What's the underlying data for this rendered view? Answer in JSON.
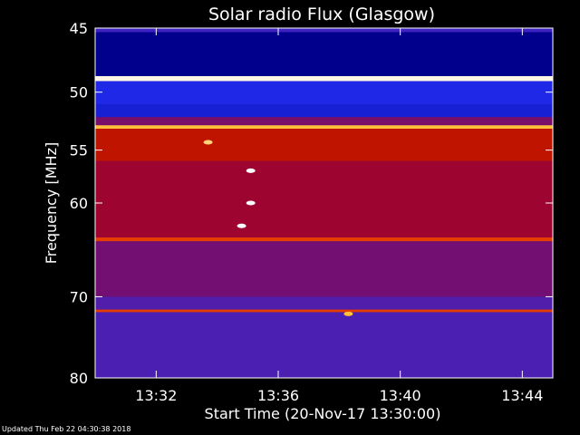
{
  "updated_text": "Updated Thu Feb 22 04:30:38 2018",
  "chart_data": {
    "type": "heatmap",
    "title": "Solar radio Flux (Glasgow)",
    "xlabel": "Start Time (20-Nov-17 13:30:00)",
    "ylabel": "Frequency [MHz]",
    "x_range_minutes": [
      0,
      15
    ],
    "x_tick_labels": [
      "13:32",
      "13:36",
      "13:40",
      "13:44"
    ],
    "x_tick_minutes": [
      2,
      6,
      10,
      14
    ],
    "y_scale": "log",
    "ylim": [
      45,
      80
    ],
    "y_ticks": [
      45,
      50,
      55,
      60,
      70,
      80
    ],
    "y_tick_labels": [
      "45",
      "50",
      "55",
      "60",
      "70",
      "80"
    ],
    "colormap": "black-blue-red-yellow-white",
    "bands": [
      {
        "f_from": 45.0,
        "f_to": 45.3,
        "level": 0.32
      },
      {
        "f_from": 45.3,
        "f_to": 48.7,
        "level": 0.12
      },
      {
        "f_from": 48.7,
        "f_to": 49.1,
        "level": 0.98
      },
      {
        "f_from": 49.1,
        "f_to": 51.0,
        "level": 0.22
      },
      {
        "f_from": 51.0,
        "f_to": 52.1,
        "level": 0.2
      },
      {
        "f_from": 52.1,
        "f_to": 52.8,
        "level": 0.45
      },
      {
        "f_from": 52.8,
        "f_to": 53.1,
        "level": 0.85
      },
      {
        "f_from": 53.1,
        "f_to": 56.0,
        "level": 0.6
      },
      {
        "f_from": 56.0,
        "f_to": 63.5,
        "level": 0.52
      },
      {
        "f_from": 63.5,
        "f_to": 63.9,
        "level": 0.7
      },
      {
        "f_from": 63.9,
        "f_to": 70.0,
        "level": 0.44
      },
      {
        "f_from": 70.0,
        "f_to": 71.5,
        "level": 0.38
      },
      {
        "f_from": 71.5,
        "f_to": 71.8,
        "level": 0.7
      },
      {
        "f_from": 71.8,
        "f_to": 80.0,
        "level": 0.36
      }
    ],
    "bursts": [
      {
        "minute": 3.7,
        "freq": 54.3,
        "level": 0.9
      },
      {
        "minute": 5.1,
        "freq": 56.9,
        "level": 1.0
      },
      {
        "minute": 5.1,
        "freq": 60.0,
        "level": 1.0
      },
      {
        "minute": 4.8,
        "freq": 62.3,
        "level": 1.0
      },
      {
        "minute": 8.3,
        "freq": 72.0,
        "level": 0.85
      }
    ]
  }
}
